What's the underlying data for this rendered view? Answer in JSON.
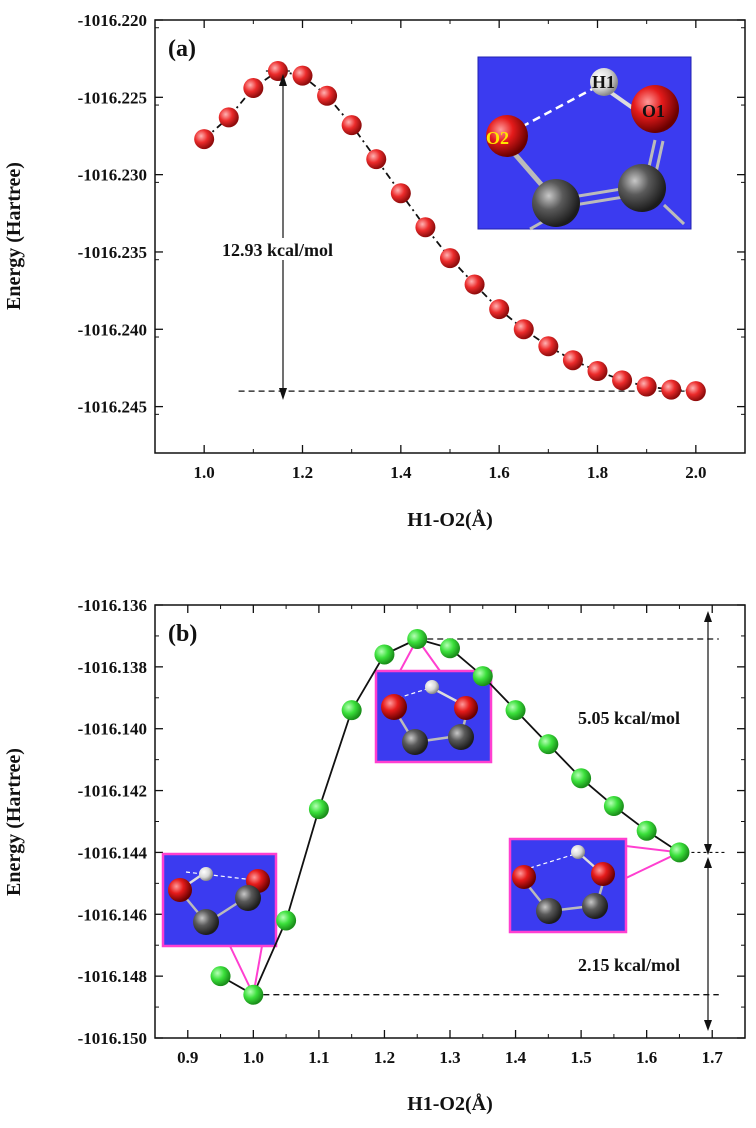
{
  "chart_data": [
    {
      "type": "scatter",
      "panel_label": "(a)",
      "xlabel": "H1-O2(Å)",
      "ylabel": "Energy (Hartree)",
      "xlim": [
        0.9,
        2.1
      ],
      "ylim": [
        -1016.248,
        -1016.22
      ],
      "xticks": [
        "1.0",
        "1.2",
        "1.4",
        "1.6",
        "1.8",
        "2.0"
      ],
      "yticks": [
        "-1016.220",
        "-1016.225",
        "-1016.230",
        "-1016.235",
        "-1016.240",
        "-1016.245"
      ],
      "marker_color": "#e8232a",
      "series": [
        {
          "x": [
            1.0,
            1.05,
            1.1,
            1.15,
            1.2,
            1.25,
            1.3,
            1.35,
            1.4,
            1.45,
            1.5,
            1.55,
            1.6,
            1.65,
            1.7,
            1.75,
            1.8,
            1.85,
            1.9,
            1.95,
            2.0
          ],
          "y": [
            -1016.2277,
            -1016.2263,
            -1016.2244,
            -1016.2233,
            -1016.2236,
            -1016.2249,
            -1016.2268,
            -1016.229,
            -1016.2312,
            -1016.2334,
            -1016.2354,
            -1016.2371,
            -1016.2387,
            -1016.24,
            -1016.2411,
            -1016.242,
            -1016.2427,
            -1016.2433,
            -1016.2437,
            -1016.2439,
            -1016.244
          ]
        }
      ],
      "annotations": {
        "barrier": "12.93 kcal/mol",
        "atom_h1": "H1",
        "atom_o1": "O1",
        "atom_o2": "O2"
      }
    },
    {
      "type": "scatter",
      "panel_label": "(b)",
      "xlabel": "H1-O2(Å)",
      "ylabel": "Energy (Hartree)",
      "xlim": [
        0.85,
        1.75
      ],
      "ylim": [
        -1016.15,
        -1016.136
      ],
      "xticks": [
        "0.9",
        "1.0",
        "1.1",
        "1.2",
        "1.3",
        "1.4",
        "1.5",
        "1.6",
        "1.7"
      ],
      "yticks": [
        "-1016.136",
        "-1016.138",
        "-1016.140",
        "-1016.142",
        "-1016.144",
        "-1016.146",
        "-1016.148",
        "-1016.150"
      ],
      "marker_color": "#3be03b",
      "series": [
        {
          "x": [
            0.95,
            1.0,
            1.05,
            1.1,
            1.15,
            1.2,
            1.25,
            1.3,
            1.35,
            1.4,
            1.45,
            1.5,
            1.55,
            1.6,
            1.65
          ],
          "y": [
            -1016.148,
            -1016.1486,
            -1016.1462,
            -1016.1426,
            -1016.1394,
            -1016.1376,
            -1016.1371,
            -1016.1374,
            -1016.1383,
            -1016.1394,
            -1016.1405,
            -1016.1416,
            -1016.1425,
            -1016.1433,
            -1016.144
          ]
        }
      ],
      "annotations": {
        "upper_gap": "5.05 kcal/mol",
        "lower_gap": "2.15 kcal/mol"
      }
    }
  ]
}
